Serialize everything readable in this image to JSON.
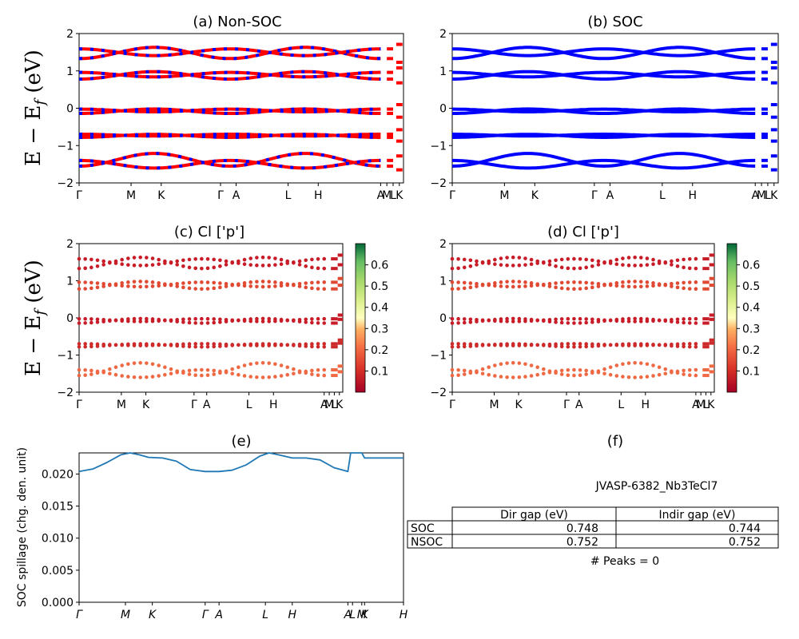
{
  "figure_id": "JVASP-6382_Nb3TeCl7",
  "colors": {
    "nonsoc_line": "#ff0000",
    "nonsoc_dash": "#0000ff",
    "soc_line": "#0000ff",
    "spillage_line": "#1f77b4"
  },
  "chart_data": [
    {
      "id": "a",
      "type": "line",
      "title": "(a) Non-SOC",
      "ylabel": "E − E_f (eV)",
      "ylim": [
        -2,
        2
      ],
      "yticks": [
        -2,
        -1,
        0,
        1,
        2
      ],
      "x_tick_labels": [
        "Γ",
        "M",
        "K",
        "Γ",
        "A",
        "L",
        "H",
        "A",
        "M",
        "L",
        "K"
      ],
      "x_tick_positions": [
        0.0,
        0.5,
        0.79,
        1.36,
        1.51,
        2.01,
        2.3,
        2.9,
        2.96,
        3.02,
        3.08
      ],
      "band_centers": [
        1.48,
        0.88,
        -0.08,
        -0.74,
        -1.38
      ],
      "style": "red-blue-dashed"
    },
    {
      "id": "b",
      "type": "line",
      "title": "(b) SOC",
      "ylim": [
        -2,
        2
      ],
      "yticks": [
        -2,
        -1,
        0,
        1,
        2
      ],
      "x_tick_labels": [
        "Γ",
        "M",
        "K",
        "Γ",
        "A",
        "L",
        "H",
        "A",
        "M",
        "L",
        "K"
      ],
      "x_tick_positions": [
        0.0,
        0.5,
        0.79,
        1.36,
        1.51,
        2.01,
        2.3,
        2.9,
        2.96,
        3.02,
        3.08
      ],
      "band_centers": [
        1.48,
        0.88,
        -0.08,
        -0.74,
        -1.38
      ],
      "style": "blue"
    },
    {
      "id": "c",
      "type": "scatter",
      "title": "(c)  Cl ['p']",
      "ylabel": "E − E_f (eV)",
      "ylim": [
        -2,
        2
      ],
      "yticks": [
        -2,
        -1,
        0,
        1,
        2
      ],
      "colorbar_ticks": [
        0.1,
        0.2,
        0.3,
        0.4,
        0.5,
        0.6
      ],
      "colorbar_range": [
        0.0,
        0.7
      ],
      "x_tick_labels": [
        "Γ",
        "M",
        "K",
        "Γ",
        "A",
        "L",
        "H",
        "A",
        "M",
        "L",
        "K"
      ],
      "x_tick_positions": [
        0.0,
        0.5,
        0.79,
        1.36,
        1.51,
        2.01,
        2.3,
        2.9,
        2.96,
        3.02,
        3.08
      ]
    },
    {
      "id": "d",
      "type": "scatter",
      "title": "(d) Cl ['p']",
      "ylim": [
        -2,
        2
      ],
      "yticks": [
        -2,
        -1,
        0,
        1,
        2
      ],
      "colorbar_ticks": [
        0.1,
        0.2,
        0.3,
        0.4,
        0.5,
        0.6
      ],
      "colorbar_range": [
        0.0,
        0.7
      ],
      "x_tick_labels": [
        "Γ",
        "M",
        "K",
        "Γ",
        "A",
        "L",
        "H",
        "A",
        "M",
        "L",
        "K"
      ],
      "x_tick_positions": [
        0.0,
        0.5,
        0.79,
        1.36,
        1.51,
        2.01,
        2.3,
        2.9,
        2.96,
        3.02,
        3.08
      ]
    },
    {
      "id": "e",
      "type": "line",
      "title": "(e)",
      "ylabel": "SOC spillage (chg. den. unit)",
      "ylim": [
        0.0,
        0.0233
      ],
      "yticks": [
        0.0,
        0.005,
        0.01,
        0.015,
        0.02
      ],
      "ytick_labels": [
        "0.000",
        "0.005",
        "0.010",
        "0.015",
        "0.020"
      ],
      "x_tick_labels": [
        "Γ",
        "M",
        "K",
        "Γ",
        "A",
        "L",
        "H",
        "A",
        "L",
        "M",
        "K",
        "H"
      ],
      "x_tick_positions": [
        0.0,
        0.5,
        0.79,
        1.36,
        1.51,
        2.01,
        2.3,
        2.9,
        2.95,
        3.05,
        3.08,
        3.5
      ],
      "x": [
        0.0,
        0.15,
        0.3,
        0.45,
        0.55,
        0.65,
        0.75,
        0.9,
        1.05,
        1.2,
        1.36,
        1.51,
        1.65,
        1.8,
        1.95,
        2.05,
        2.15,
        2.3,
        2.45,
        2.6,
        2.75,
        2.9,
        2.93,
        3.05,
        3.08,
        3.2,
        3.35,
        3.5
      ],
      "y": [
        0.0204,
        0.0208,
        0.0218,
        0.023,
        0.0233,
        0.023,
        0.0226,
        0.0225,
        0.022,
        0.0207,
        0.0204,
        0.0204,
        0.0206,
        0.0214,
        0.0228,
        0.0233,
        0.023,
        0.0225,
        0.0225,
        0.0222,
        0.021,
        0.0204,
        0.0233,
        0.0233,
        0.0225,
        0.0225,
        0.0225,
        0.0225
      ]
    },
    {
      "id": "f",
      "type": "table",
      "title": "(f)",
      "subtitle": "JVASP-6382_Nb3TeCl7",
      "columns": [
        "",
        "Dir gap (eV)",
        "Indir gap (eV)"
      ],
      "rows": [
        [
          "SOC",
          "0.748",
          "0.744"
        ],
        [
          "NSOC",
          "0.752",
          "0.752"
        ]
      ],
      "footer": "# Peaks = 0"
    }
  ]
}
